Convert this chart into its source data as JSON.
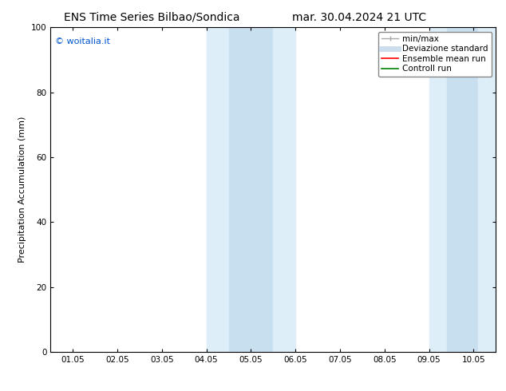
{
  "title_left": "ENS Time Series Bilbao/Sondica",
  "title_right": "mar. 30.04.2024 21 UTC",
  "ylabel": "Precipitation Accumulation (mm)",
  "watermark": "© woitalia.it",
  "watermark_color": "#0055cc",
  "ylim": [
    0,
    100
  ],
  "yticks": [
    0,
    20,
    40,
    60,
    80,
    100
  ],
  "xtick_labels": [
    "01.05",
    "02.05",
    "03.05",
    "04.05",
    "05.05",
    "06.05",
    "07.05",
    "08.05",
    "09.05",
    "10.05"
  ],
  "xmin": 0,
  "xmax": 9,
  "shaded_outer_1": {
    "xstart": 3.0,
    "xend": 4.0,
    "color": "#ddeef8"
  },
  "shaded_inner_1": {
    "xstart": 3.5,
    "xend": 4.0,
    "color": "#c5ddf0"
  },
  "shaded_outer_2": {
    "xstart": 4.0,
    "xend": 5.0,
    "color": "#ddeef8"
  },
  "shaded_inner_2": {
    "xstart": 4.0,
    "xend": 4.5,
    "color": "#c5ddf0"
  },
  "shaded_outer_3": {
    "xstart": 8.0,
    "xend": 8.8,
    "color": "#ddeef8"
  },
  "shaded_inner_3": {
    "xstart": 8.0,
    "xend": 8.4,
    "color": "#c5ddf0"
  },
  "shaded_outer_4": {
    "xstart": 8.8,
    "xend": 9.3,
    "color": "#ddeef8"
  },
  "shaded_inner_4": {
    "xstart": 8.8,
    "xend": 9.1,
    "color": "#c5ddf0"
  },
  "legend_items": [
    {
      "label": "min/max",
      "color": "#aaaaaa",
      "lw": 1.0
    },
    {
      "label": "Deviazione standard",
      "color": "#ccddee",
      "lw": 5
    },
    {
      "label": "Ensemble mean run",
      "color": "red",
      "lw": 1.2
    },
    {
      "label": "Controll run",
      "color": "green",
      "lw": 1.2
    }
  ],
  "bg_color": "#ffffff",
  "spine_color": "#000000",
  "title_fontsize": 10,
  "tick_fontsize": 7.5,
  "ylabel_fontsize": 8,
  "legend_fontsize": 7.5
}
